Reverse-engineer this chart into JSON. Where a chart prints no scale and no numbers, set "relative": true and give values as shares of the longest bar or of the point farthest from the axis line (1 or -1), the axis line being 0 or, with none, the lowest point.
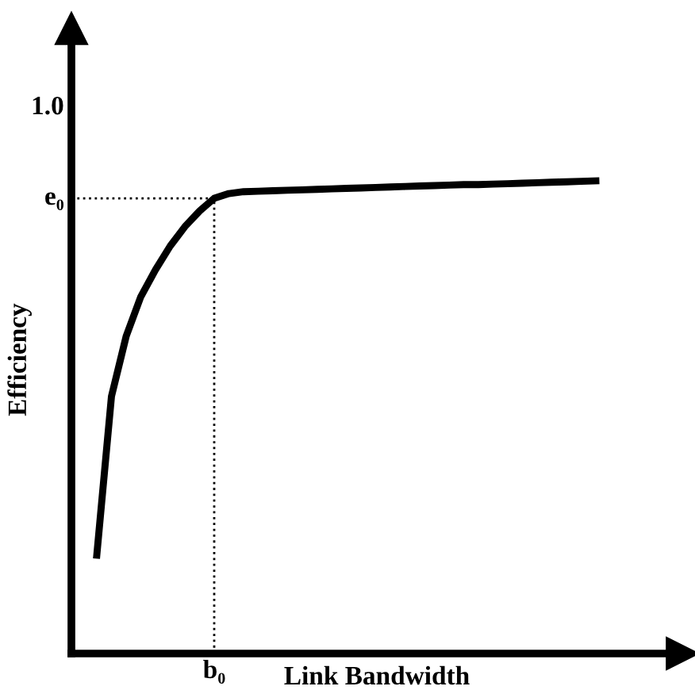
{
  "chart_data": {
    "type": "line",
    "relative": true,
    "xlabel": "Link Bandwidth",
    "ylabel": "Efficiency",
    "categories": [
      null,
      null,
      null,
      null,
      null,
      null,
      null,
      null,
      null,
      null,
      null,
      null,
      null,
      null,
      null,
      null,
      null,
      null,
      null,
      null,
      null,
      null,
      null,
      null,
      null,
      null,
      null,
      null,
      null,
      null,
      null,
      null,
      null,
      null,
      null
    ],
    "series": [
      {
        "color": "#000000",
        "values": [
          0.208,
          0.544,
          0.671,
          0.755,
          0.812,
          0.862,
          0.903,
          0.936,
          0.963,
          0.973,
          0.977,
          0.978,
          0.979,
          0.98,
          0.981,
          0.982,
          0.983,
          0.984,
          0.985,
          0.986,
          0.987,
          0.988,
          0.989,
          0.99,
          0.991,
          0.992,
          0.992,
          0.993,
          0.994,
          0.995,
          0.996,
          0.997,
          0.998,
          0.999,
          1.0
        ]
      }
    ],
    "ref_lines": [
      {
        "axis": "y",
        "value": 0.963,
        "label": "e₀",
        "color": "#000000",
        "line_style": "dotted"
      }
    ],
    "annotations": [
      "1.0",
      "b₀"
    ],
    "legend": false,
    "marker": "none",
    "line_style": "solid"
  }
}
